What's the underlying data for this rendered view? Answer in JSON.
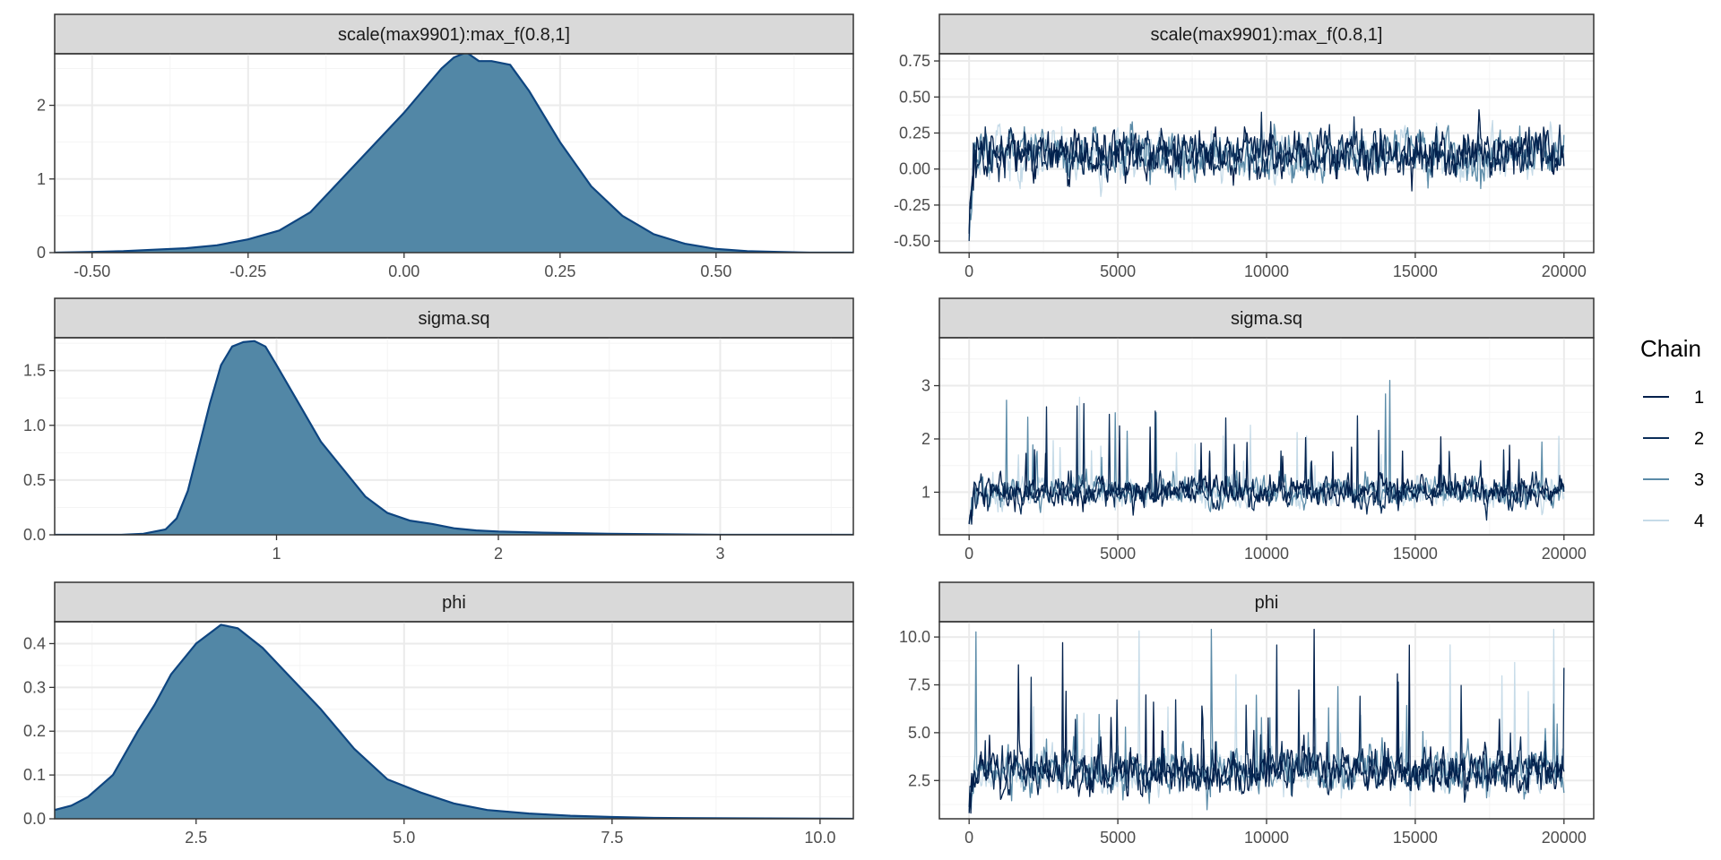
{
  "chart_data": [
    {
      "type": "area",
      "panel": "density",
      "title": "scale(max9901):max_f(0.8,1]",
      "xlim": [
        -0.56,
        0.72
      ],
      "ylim": [
        0,
        2.7
      ],
      "x_ticks": [
        -0.5,
        -0.25,
        0.0,
        0.25,
        0.5
      ],
      "x_tick_labels": [
        "-0.50",
        "-0.25",
        "0.00",
        "0.25",
        "0.50"
      ],
      "y_ticks": [
        0,
        1,
        2
      ],
      "y_tick_labels": [
        "0",
        "1",
        "2"
      ],
      "x": [
        -0.56,
        -0.5,
        -0.45,
        -0.4,
        -0.35,
        -0.3,
        -0.25,
        -0.2,
        -0.15,
        -0.1,
        -0.05,
        0.0,
        0.03,
        0.06,
        0.08,
        0.1,
        0.12,
        0.14,
        0.17,
        0.2,
        0.25,
        0.3,
        0.35,
        0.4,
        0.45,
        0.5,
        0.55,
        0.6,
        0.65,
        0.72
      ],
      "y": [
        0.0,
        0.01,
        0.02,
        0.04,
        0.06,
        0.1,
        0.18,
        0.3,
        0.55,
        1.0,
        1.45,
        1.9,
        2.2,
        2.5,
        2.65,
        2.72,
        2.6,
        2.6,
        2.55,
        2.2,
        1.5,
        0.9,
        0.5,
        0.25,
        0.12,
        0.05,
        0.02,
        0.01,
        0.0,
        0.0
      ]
    },
    {
      "type": "line",
      "panel": "trace",
      "title": "scale(max9901):max_f(0.8,1]",
      "xlim": [
        -1000,
        21000
      ],
      "ylim": [
        -0.58,
        0.8
      ],
      "x_ticks": [
        0,
        5000,
        10000,
        15000,
        20000
      ],
      "x_tick_labels": [
        "0",
        "5000",
        "10000",
        "15000",
        "20000"
      ],
      "y_ticks": [
        -0.5,
        -0.25,
        0.0,
        0.25,
        0.5,
        0.75
      ],
      "y_tick_labels": [
        "-0.50",
        "-0.25",
        "0.00",
        "0.25",
        "0.50",
        "0.75"
      ],
      "trace": {
        "center": 0.1,
        "spread": 0.15,
        "low": -0.5,
        "high": 0.72,
        "skew": 0
      }
    },
    {
      "type": "area",
      "panel": "density",
      "title": "sigma.sq",
      "xlim": [
        0.0,
        3.6
      ],
      "ylim": [
        0,
        1.8
      ],
      "x_ticks": [
        1,
        2,
        3
      ],
      "x_tick_labels": [
        "1",
        "2",
        "3"
      ],
      "y_ticks": [
        0.0,
        0.5,
        1.0,
        1.5
      ],
      "y_tick_labels": [
        "0.0",
        "0.5",
        "1.0",
        "1.5"
      ],
      "x": [
        0.0,
        0.3,
        0.4,
        0.5,
        0.55,
        0.6,
        0.65,
        0.7,
        0.75,
        0.8,
        0.85,
        0.9,
        0.95,
        1.0,
        1.1,
        1.2,
        1.3,
        1.4,
        1.5,
        1.6,
        1.7,
        1.8,
        1.9,
        2.0,
        2.2,
        2.5,
        3.0,
        3.6
      ],
      "y": [
        0.0,
        0.0,
        0.01,
        0.05,
        0.15,
        0.4,
        0.8,
        1.2,
        1.55,
        1.72,
        1.76,
        1.77,
        1.72,
        1.55,
        1.2,
        0.85,
        0.6,
        0.35,
        0.2,
        0.13,
        0.1,
        0.06,
        0.04,
        0.03,
        0.02,
        0.01,
        0.0,
        0.0
      ]
    },
    {
      "type": "line",
      "panel": "trace",
      "title": "sigma.sq",
      "xlim": [
        -1000,
        21000
      ],
      "ylim": [
        0.2,
        3.9
      ],
      "x_ticks": [
        0,
        5000,
        10000,
        15000,
        20000
      ],
      "x_tick_labels": [
        "0",
        "5000",
        "10000",
        "15000",
        "20000"
      ],
      "y_ticks": [
        1,
        2,
        3
      ],
      "y_tick_labels": [
        "1",
        "2",
        "3"
      ],
      "trace": {
        "center": 1.0,
        "spread": 0.25,
        "low": 0.4,
        "high": 3.8,
        "skew": 1
      }
    },
    {
      "type": "area",
      "panel": "density",
      "title": "phi",
      "xlim": [
        0.8,
        10.4
      ],
      "ylim": [
        0,
        0.45
      ],
      "x_ticks": [
        2.5,
        5.0,
        7.5,
        10.0
      ],
      "x_tick_labels": [
        "2.5",
        "5.0",
        "7.5",
        "10.0"
      ],
      "y_ticks": [
        0.0,
        0.1,
        0.2,
        0.3,
        0.4
      ],
      "y_tick_labels": [
        "0.0",
        "0.1",
        "0.2",
        "0.3",
        "0.4"
      ],
      "x": [
        0.8,
        1.0,
        1.2,
        1.5,
        1.8,
        2.0,
        2.2,
        2.5,
        2.8,
        3.0,
        3.3,
        3.6,
        4.0,
        4.4,
        4.8,
        5.2,
        5.6,
        6.0,
        6.5,
        7.0,
        7.5,
        8.0,
        9.0,
        10.4
      ],
      "y": [
        0.02,
        0.03,
        0.05,
        0.1,
        0.2,
        0.26,
        0.33,
        0.4,
        0.443,
        0.435,
        0.39,
        0.33,
        0.25,
        0.16,
        0.09,
        0.06,
        0.035,
        0.02,
        0.012,
        0.007,
        0.004,
        0.002,
        0.001,
        0.0
      ]
    },
    {
      "type": "line",
      "panel": "trace",
      "title": "phi",
      "xlim": [
        -1000,
        21000
      ],
      "ylim": [
        0.5,
        10.8
      ],
      "x_ticks": [
        0,
        5000,
        10000,
        15000,
        20000
      ],
      "x_tick_labels": [
        "0",
        "5000",
        "10000",
        "15000",
        "20000"
      ],
      "y_ticks": [
        2.5,
        5.0,
        7.5,
        10.0
      ],
      "y_tick_labels": [
        "2.5",
        "5.0",
        "7.5",
        "10.0"
      ],
      "trace": {
        "center": 3.0,
        "spread": 1.0,
        "low": 0.8,
        "high": 10.4,
        "skew": 1
      }
    }
  ],
  "legend": {
    "title": "Chain",
    "placement": "right",
    "entries": [
      {
        "label": "1",
        "color": "#011f4b"
      },
      {
        "label": "2",
        "color": "#0b2e59"
      },
      {
        "label": "3",
        "color": "#5b8ba8"
      },
      {
        "label": "4",
        "color": "#c6dbe8"
      }
    ]
  },
  "colors": {
    "density_fill": "#5287a6",
    "density_line": "#0e4580",
    "strip_fill": "#d9d9d9",
    "strip_border": "#333333",
    "grid_major": "#ebebeb",
    "grid_minor": "#f4f4f4",
    "panel_border": "#333333"
  }
}
